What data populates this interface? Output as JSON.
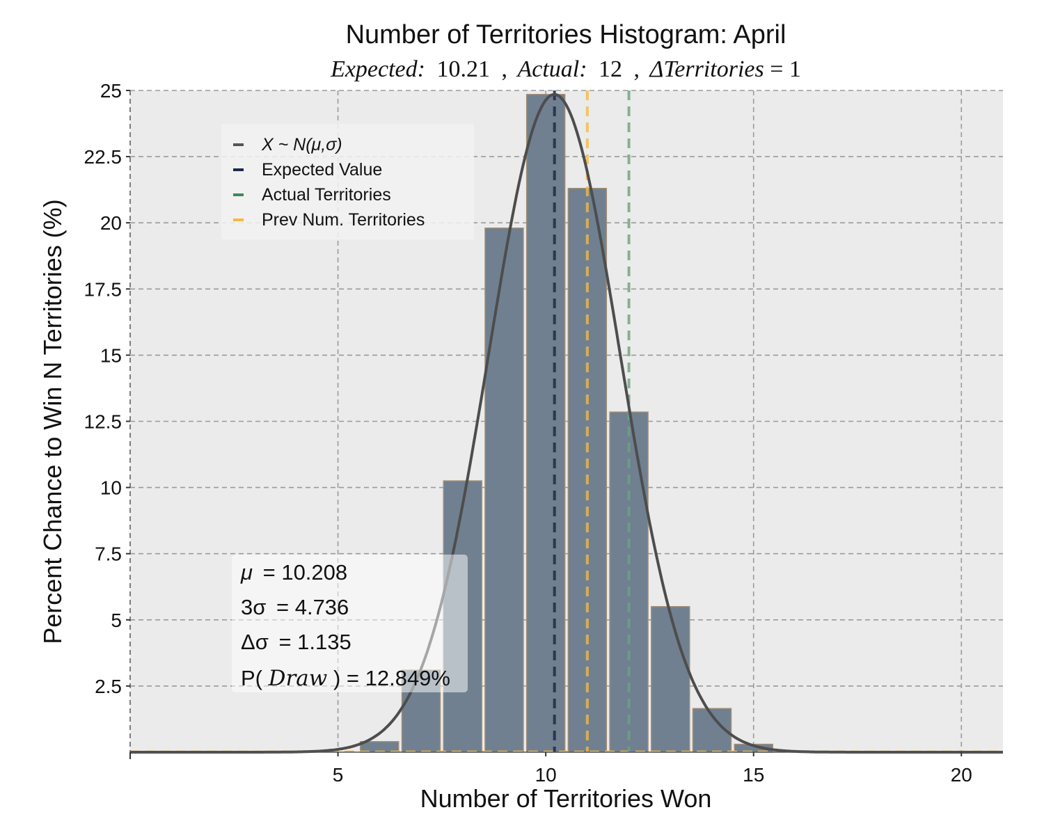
{
  "chart_data": {
    "type": "bar",
    "title": "Number of Territories Histogram: April",
    "subtitle": {
      "expected_label": "Expected:",
      "expected_value": "10.21",
      "actual_label": "Actual:",
      "actual_value": "12",
      "delta_label": "ΔTerritories",
      "delta_value": "= 1",
      "separator": ","
    },
    "xlabel": "Number of Territories Won",
    "ylabel": "Percent Chance to Win N Territories (%)",
    "xlim": [
      0,
      21
    ],
    "ylim": [
      0,
      25
    ],
    "xticks": [
      5,
      10,
      15,
      20
    ],
    "xtick_labels": [
      "5",
      "10",
      "15",
      "20"
    ],
    "yticks": [
      2.5,
      5,
      7.5,
      10,
      12.5,
      15,
      17.5,
      20,
      22.5,
      25
    ],
    "ytick_labels": [
      "2.5",
      "5",
      "7.5",
      "10",
      "12.5",
      "15",
      "17.5",
      "20",
      "22.5",
      "25"
    ],
    "grid": true,
    "bars": {
      "x": [
        6,
        7,
        8,
        9,
        10,
        11,
        12,
        13,
        14,
        15
      ],
      "values": [
        0.4,
        3.1,
        10.25,
        19.8,
        24.85,
        21.3,
        12.85,
        5.5,
        1.65,
        0.3
      ],
      "color": "#708090",
      "edge_color": "#a08c78"
    },
    "normal_curve": {
      "name": "X ~ N(μ,σ)",
      "mu": 10.208,
      "sigma": 1.579,
      "color": "#4d4d4d"
    },
    "vlines": [
      {
        "name": "Expected Value",
        "x": 10.21,
        "color": "#1f2a4a"
      },
      {
        "name": "Actual Territories",
        "x": 12,
        "color": "#6aa57e"
      },
      {
        "name": "Prev Num. Territories",
        "x": 11,
        "color": "#f5b942"
      }
    ],
    "legend": {
      "placement": "upper-left",
      "items": [
        {
          "label": "X ~ N(μ,σ)",
          "color": "#555555",
          "italic": true
        },
        {
          "label": "Expected Value",
          "color": "#1f2a4a",
          "italic": false
        },
        {
          "label": "Actual Territories",
          "color": "#3e8a58",
          "italic": false
        },
        {
          "label": "Prev Num. Territories",
          "color": "#f5b942",
          "italic": false
        }
      ]
    },
    "stats": {
      "mu_label": "μ",
      "mu_value": "= 10.208",
      "three_sigma_label": "3σ",
      "three_sigma_value": "= 4.736",
      "delta_sigma_label": "Δσ",
      "delta_sigma_value": "= 1.135",
      "p_draw_label": "P(",
      "p_draw_var": "Draw",
      "p_draw_value": ") = 12.849%"
    },
    "colors": {
      "plot_background": "#ebebeb",
      "grid": "#9a9a9a",
      "prev_baseline": "#f5b942"
    }
  }
}
